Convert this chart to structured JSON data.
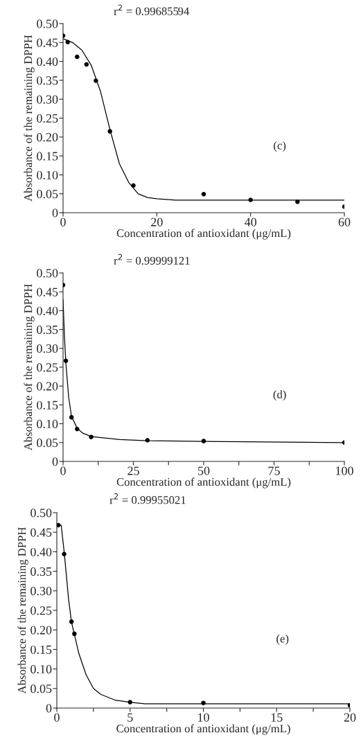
{
  "chart_data": [
    {
      "type": "scatter",
      "xlabel": "Concentration of antioxidant (μg/mL)",
      "ylabel": "Absorbance of the remaining DPPH",
      "xlim": [
        0,
        60
      ],
      "ylim": [
        0,
        0.5
      ],
      "xticks": [
        0,
        20,
        40,
        60
      ],
      "yticks": [
        {
          "value": 0,
          "label": "0"
        },
        {
          "value": 0.05,
          "label": "0.05"
        },
        {
          "value": 0.1,
          "label": "0.10"
        },
        {
          "value": 0.15,
          "label": "0.15"
        },
        {
          "value": 0.2,
          "label": "0.20"
        },
        {
          "value": 0.25,
          "label": "0.25"
        },
        {
          "value": 0.3,
          "label": "0.30"
        },
        {
          "value": 0.35,
          "label": "0.35"
        },
        {
          "value": 0.4,
          "label": "0.40"
        },
        {
          "value": 0.45,
          "label": "0.45"
        },
        {
          "value": 0.5,
          "label": "0.50"
        }
      ],
      "grid": false,
      "legend": false,
      "annotations": [
        "r$^{2}$ = 0.99685594",
        "(c)"
      ],
      "series": [
        {
          "marker": "circle",
          "color": "#000000",
          "x": [
            0,
            1,
            3,
            5,
            7,
            10,
            15,
            30,
            40,
            50,
            60
          ],
          "values": [
            0.468,
            0.451,
            0.412,
            0.392,
            0.349,
            0.215,
            0.072,
            0.049,
            0.034,
            0.029,
            0.016
          ]
        },
        {
          "type": "line",
          "marker": "none",
          "line_style": "solid",
          "color": "#000000",
          "x": [
            0,
            2,
            4,
            6,
            8,
            10,
            12,
            14,
            16,
            18,
            20,
            24,
            60
          ],
          "values": [
            0.46,
            0.45,
            0.43,
            0.39,
            0.32,
            0.22,
            0.13,
            0.08,
            0.05,
            0.04,
            0.037,
            0.033,
            0.033
          ]
        }
      ]
    },
    {
      "type": "scatter",
      "xlabel": "Concentration of antioxidant (μg/mL)",
      "ylabel": "Absorbance of the remaining DPPH",
      "xlim": [
        0,
        100
      ],
      "ylim": [
        0,
        0.5
      ],
      "xticks": [
        0,
        {
          "value": 12.5,
          "label": null
        },
        25,
        {
          "value": 37.5,
          "label": null
        },
        50,
        {
          "value": 62.5,
          "label": null
        },
        75,
        {
          "value": 87.5,
          "label": null
        },
        100
      ],
      "yticks": [
        {
          "value": 0,
          "label": "0"
        },
        {
          "value": 0.05,
          "label": "0.05"
        },
        {
          "value": 0.1,
          "label": "0.10"
        },
        {
          "value": 0.15,
          "label": "0.15"
        },
        {
          "value": 0.2,
          "label": "0.20"
        },
        {
          "value": 0.25,
          "label": "0.25"
        },
        {
          "value": 0.3,
          "label": "0.30"
        },
        {
          "value": 0.35,
          "label": "0.35"
        },
        {
          "value": 0.4,
          "label": "0.40"
        },
        {
          "value": 0.45,
          "label": "0.45"
        },
        {
          "value": 0.5,
          "label": "0.50"
        }
      ],
      "grid": false,
      "legend": false,
      "annotations": [
        "r$^{2}$ = 0.99999121",
        "(d)"
      ],
      "series": [
        {
          "marker": "circle",
          "color": "#000000",
          "x": [
            0,
            1,
            3,
            5,
            10,
            30,
            50,
            100
          ],
          "values": [
            0.468,
            0.267,
            0.117,
            0.086,
            0.065,
            0.056,
            0.054,
            0.05
          ]
        },
        {
          "type": "line",
          "marker": "none",
          "line_style": "solid",
          "color": "#000000",
          "x": [
            0,
            0.5,
            1,
            2,
            3,
            5,
            7,
            10,
            20,
            30,
            50,
            100
          ],
          "values": [
            0.43,
            0.33,
            0.26,
            0.17,
            0.12,
            0.088,
            0.075,
            0.066,
            0.058,
            0.055,
            0.053,
            0.05
          ]
        }
      ]
    },
    {
      "type": "scatter",
      "xlabel": "Concentration of antioxidant (μg/mL)",
      "ylabel": "Absorbance of the remaining DPPH",
      "xlim": [
        0,
        20
      ],
      "ylim": [
        0,
        0.5
      ],
      "xticks": [
        0,
        {
          "value": 2.5,
          "label": null
        },
        5,
        {
          "value": 7.5,
          "label": null
        },
        10,
        {
          "value": 12.5,
          "label": null
        },
        15,
        {
          "value": 17.5,
          "label": null
        },
        20
      ],
      "yticks": [
        {
          "value": 0,
          "label": "0"
        },
        {
          "value": 0.05,
          "label": "0.05"
        },
        {
          "value": 0.1,
          "label": "0.10"
        },
        {
          "value": 0.15,
          "label": "0.15"
        },
        {
          "value": 0.2,
          "label": "0.20"
        },
        {
          "value": 0.25,
          "label": "0.25"
        },
        {
          "value": 0.3,
          "label": "0.30"
        },
        {
          "value": 0.35,
          "label": "0.35"
        },
        {
          "value": 0.4,
          "label": "0.40"
        },
        {
          "value": 0.45,
          "label": "0.45"
        },
        {
          "value": 0.5,
          "label": "0.50"
        }
      ],
      "grid": false,
      "legend": false,
      "annotations": [
        "r$^{2}$ = 0.99955021",
        "(e)"
      ],
      "series": [
        {
          "marker": "circle",
          "color": "#000000",
          "x": [
            0.1,
            0.5,
            1,
            1.2,
            5,
            10,
            20
          ],
          "values": [
            0.468,
            0.394,
            0.221,
            0.19,
            0.015,
            0.013,
            0.007
          ]
        },
        {
          "type": "line",
          "marker": "none",
          "line_style": "solid",
          "color": "#000000",
          "x": [
            0,
            0.3,
            0.5,
            0.8,
            1,
            1.5,
            2,
            2.5,
            3,
            4,
            5,
            6,
            20
          ],
          "values": [
            0.47,
            0.468,
            0.4,
            0.28,
            0.22,
            0.14,
            0.085,
            0.05,
            0.035,
            0.02,
            0.015,
            0.011,
            0.011
          ]
        }
      ]
    }
  ]
}
